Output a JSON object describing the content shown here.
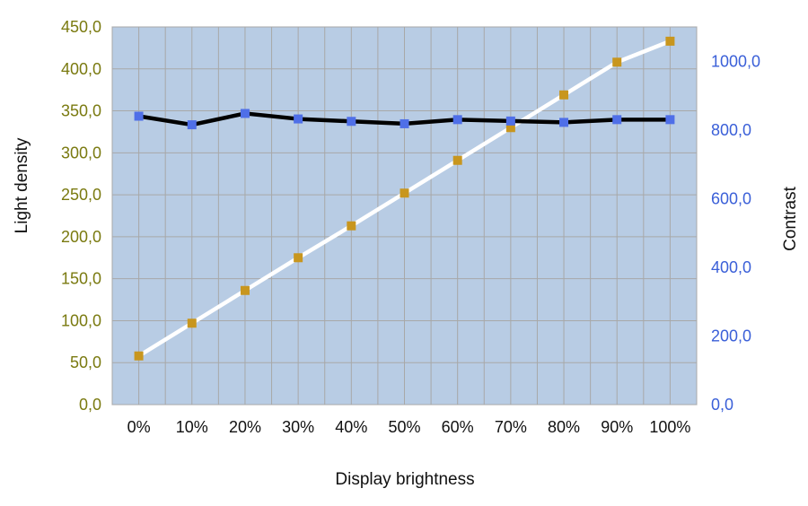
{
  "chart_data": {
    "type": "line",
    "xlabel": "Display brightness",
    "ylabel_left": "Light density",
    "ylabel_right": "Contrast",
    "categories": [
      "0%",
      "10%",
      "20%",
      "30%",
      "40%",
      "50%",
      "60%",
      "70%",
      "80%",
      "90%",
      "100%"
    ],
    "y_left": {
      "min": 0,
      "max": 450,
      "ticks": [
        0,
        50,
        100,
        150,
        200,
        250,
        300,
        350,
        400,
        450
      ],
      "tick_labels": [
        "0,0",
        "50,0",
        "100,0",
        "150,0",
        "200,0",
        "250,0",
        "300,0",
        "350,0",
        "400,0",
        "450,0"
      ]
    },
    "y_right": {
      "min": 0,
      "max": 1100,
      "ticks": [
        0,
        200,
        400,
        600,
        800,
        1000
      ],
      "tick_labels": [
        "0,0",
        "200,0",
        "400,0",
        "600,0",
        "800,0",
        "1000,0"
      ]
    },
    "grid": true,
    "series": [
      {
        "axis": "left",
        "values": [
          58,
          97,
          136,
          175,
          213,
          252,
          291,
          330,
          369,
          408,
          433
        ],
        "line_color": "#ffffff",
        "marker_color": "#c8961e"
      },
      {
        "axis": "right",
        "values": [
          840,
          815,
          848,
          832,
          825,
          818,
          830,
          826,
          822,
          830,
          830
        ],
        "line_color": "#000000",
        "marker_color": "#4f6fe8"
      }
    ],
    "colors": {
      "plot_background": "#b8cce4",
      "grid": "#a8a8a8",
      "left_axis_text": "#7a7a10",
      "right_axis_text": "#3a5fd8"
    }
  }
}
